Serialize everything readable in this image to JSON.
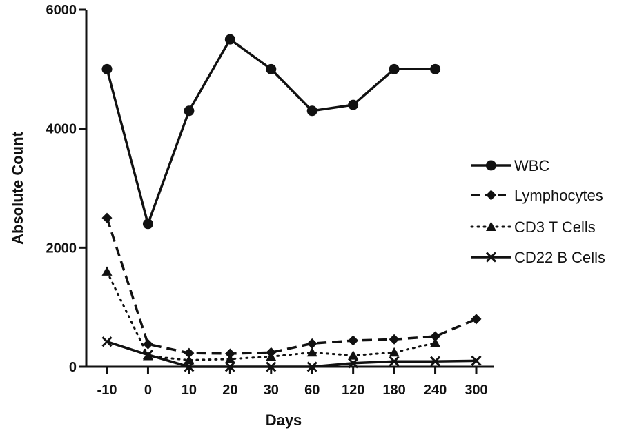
{
  "chart_data": {
    "type": "line",
    "title": "",
    "xlabel": "Days",
    "ylabel": "Absolute Count",
    "categories": [
      "-10",
      "0",
      "10",
      "20",
      "30",
      "60",
      "120",
      "180",
      "240",
      "300"
    ],
    "ylim": [
      0,
      6000
    ],
    "yticks": [
      "0",
      "2000",
      "4000",
      "6000"
    ],
    "grid": false,
    "legend_position": "right",
    "series": [
      {
        "name": "WBC",
        "marker": "circle",
        "line": "solid",
        "values": [
          5000,
          2400,
          4300,
          5500,
          5000,
          4300,
          4400,
          5000,
          5000,
          null
        ]
      },
      {
        "name": "Lymphocytes",
        "marker": "diamond",
        "line": "dashed",
        "values": [
          2500,
          380,
          230,
          220,
          240,
          390,
          440,
          460,
          510,
          800
        ]
      },
      {
        "name": "CD3 T Cells",
        "marker": "triangle",
        "line": "dotted",
        "values": [
          1600,
          180,
          110,
          130,
          170,
          240,
          190,
          240,
          400,
          null
        ]
      },
      {
        "name": "CD22 B Cells",
        "marker": "x",
        "line": "solid",
        "values": [
          420,
          200,
          0,
          0,
          0,
          0,
          60,
          90,
          90,
          100
        ]
      }
    ]
  }
}
